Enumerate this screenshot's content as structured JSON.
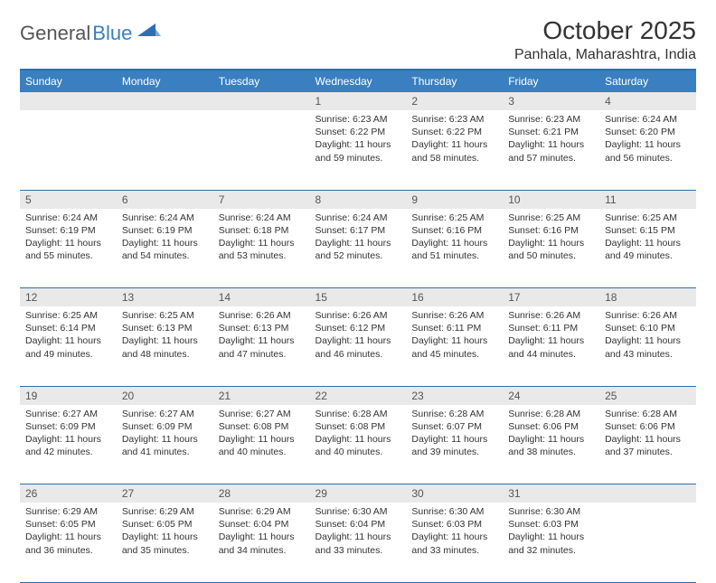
{
  "logo": {
    "text1": "General",
    "text2": "Blue"
  },
  "title": "October 2025",
  "location": "Panhala, Maharashtra, India",
  "colors": {
    "header_bg": "#3a7fbf",
    "header_text": "#ffffff",
    "border": "#2d6fb0",
    "daynum_bg": "#e9e9e9",
    "text": "#333333",
    "logo_gray": "#555555",
    "logo_blue": "#3a7fbf"
  },
  "weekdays": [
    "Sunday",
    "Monday",
    "Tuesday",
    "Wednesday",
    "Thursday",
    "Friday",
    "Saturday"
  ],
  "weeks": [
    [
      null,
      null,
      null,
      {
        "n": "1",
        "sr": "6:23 AM",
        "ss": "6:22 PM",
        "dl": "11 hours and 59 minutes."
      },
      {
        "n": "2",
        "sr": "6:23 AM",
        "ss": "6:22 PM",
        "dl": "11 hours and 58 minutes."
      },
      {
        "n": "3",
        "sr": "6:23 AM",
        "ss": "6:21 PM",
        "dl": "11 hours and 57 minutes."
      },
      {
        "n": "4",
        "sr": "6:24 AM",
        "ss": "6:20 PM",
        "dl": "11 hours and 56 minutes."
      }
    ],
    [
      {
        "n": "5",
        "sr": "6:24 AM",
        "ss": "6:19 PM",
        "dl": "11 hours and 55 minutes."
      },
      {
        "n": "6",
        "sr": "6:24 AM",
        "ss": "6:19 PM",
        "dl": "11 hours and 54 minutes."
      },
      {
        "n": "7",
        "sr": "6:24 AM",
        "ss": "6:18 PM",
        "dl": "11 hours and 53 minutes."
      },
      {
        "n": "8",
        "sr": "6:24 AM",
        "ss": "6:17 PM",
        "dl": "11 hours and 52 minutes."
      },
      {
        "n": "9",
        "sr": "6:25 AM",
        "ss": "6:16 PM",
        "dl": "11 hours and 51 minutes."
      },
      {
        "n": "10",
        "sr": "6:25 AM",
        "ss": "6:16 PM",
        "dl": "11 hours and 50 minutes."
      },
      {
        "n": "11",
        "sr": "6:25 AM",
        "ss": "6:15 PM",
        "dl": "11 hours and 49 minutes."
      }
    ],
    [
      {
        "n": "12",
        "sr": "6:25 AM",
        "ss": "6:14 PM",
        "dl": "11 hours and 49 minutes."
      },
      {
        "n": "13",
        "sr": "6:25 AM",
        "ss": "6:13 PM",
        "dl": "11 hours and 48 minutes."
      },
      {
        "n": "14",
        "sr": "6:26 AM",
        "ss": "6:13 PM",
        "dl": "11 hours and 47 minutes."
      },
      {
        "n": "15",
        "sr": "6:26 AM",
        "ss": "6:12 PM",
        "dl": "11 hours and 46 minutes."
      },
      {
        "n": "16",
        "sr": "6:26 AM",
        "ss": "6:11 PM",
        "dl": "11 hours and 45 minutes."
      },
      {
        "n": "17",
        "sr": "6:26 AM",
        "ss": "6:11 PM",
        "dl": "11 hours and 44 minutes."
      },
      {
        "n": "18",
        "sr": "6:26 AM",
        "ss": "6:10 PM",
        "dl": "11 hours and 43 minutes."
      }
    ],
    [
      {
        "n": "19",
        "sr": "6:27 AM",
        "ss": "6:09 PM",
        "dl": "11 hours and 42 minutes."
      },
      {
        "n": "20",
        "sr": "6:27 AM",
        "ss": "6:09 PM",
        "dl": "11 hours and 41 minutes."
      },
      {
        "n": "21",
        "sr": "6:27 AM",
        "ss": "6:08 PM",
        "dl": "11 hours and 40 minutes."
      },
      {
        "n": "22",
        "sr": "6:28 AM",
        "ss": "6:08 PM",
        "dl": "11 hours and 40 minutes."
      },
      {
        "n": "23",
        "sr": "6:28 AM",
        "ss": "6:07 PM",
        "dl": "11 hours and 39 minutes."
      },
      {
        "n": "24",
        "sr": "6:28 AM",
        "ss": "6:06 PM",
        "dl": "11 hours and 38 minutes."
      },
      {
        "n": "25",
        "sr": "6:28 AM",
        "ss": "6:06 PM",
        "dl": "11 hours and 37 minutes."
      }
    ],
    [
      {
        "n": "26",
        "sr": "6:29 AM",
        "ss": "6:05 PM",
        "dl": "11 hours and 36 minutes."
      },
      {
        "n": "27",
        "sr": "6:29 AM",
        "ss": "6:05 PM",
        "dl": "11 hours and 35 minutes."
      },
      {
        "n": "28",
        "sr": "6:29 AM",
        "ss": "6:04 PM",
        "dl": "11 hours and 34 minutes."
      },
      {
        "n": "29",
        "sr": "6:30 AM",
        "ss": "6:04 PM",
        "dl": "11 hours and 33 minutes."
      },
      {
        "n": "30",
        "sr": "6:30 AM",
        "ss": "6:03 PM",
        "dl": "11 hours and 33 minutes."
      },
      {
        "n": "31",
        "sr": "6:30 AM",
        "ss": "6:03 PM",
        "dl": "11 hours and 32 minutes."
      },
      null
    ]
  ],
  "labels": {
    "sunrise": "Sunrise:",
    "sunset": "Sunset:",
    "daylight": "Daylight:"
  }
}
